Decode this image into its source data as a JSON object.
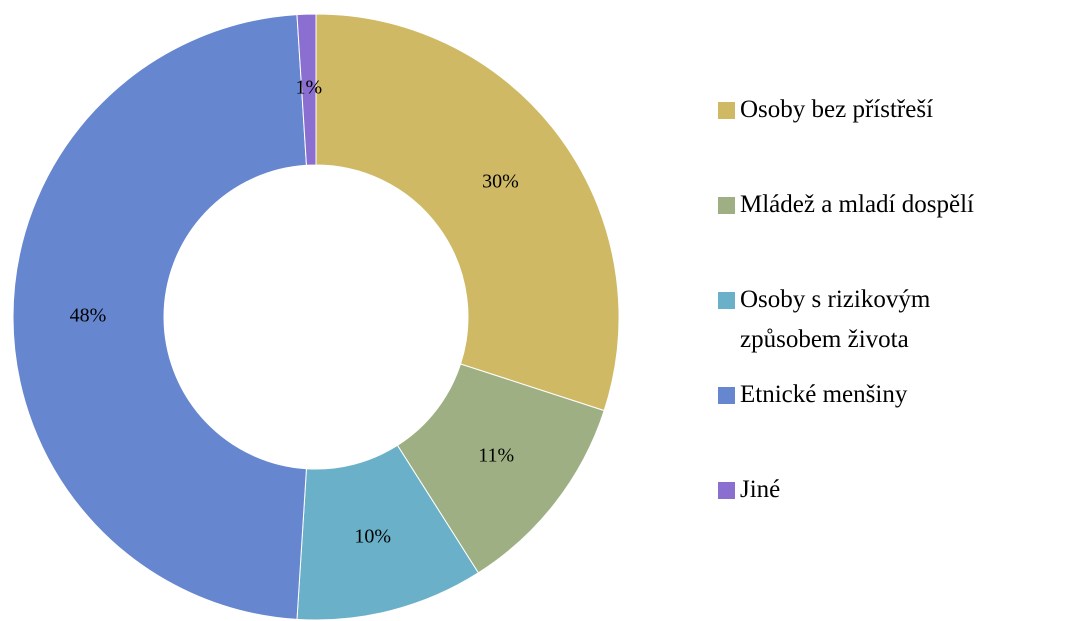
{
  "chart_data": {
    "type": "donut",
    "categories": [
      "Osoby bez přístřeší",
      "Mládež a mladí dospělí",
      "Osoby s rizikovým způsobem života",
      "Etnické menšiny",
      "Jiné"
    ],
    "values": [
      30,
      11,
      10,
      48,
      1
    ],
    "value_labels": [
      "30%",
      "11%",
      "10%",
      "48%",
      "1%"
    ],
    "colors": [
      "#cfb964",
      "#9eb083",
      "#6ab0c8",
      "#6686cf",
      "#8a6fd0"
    ],
    "legend": "right"
  }
}
